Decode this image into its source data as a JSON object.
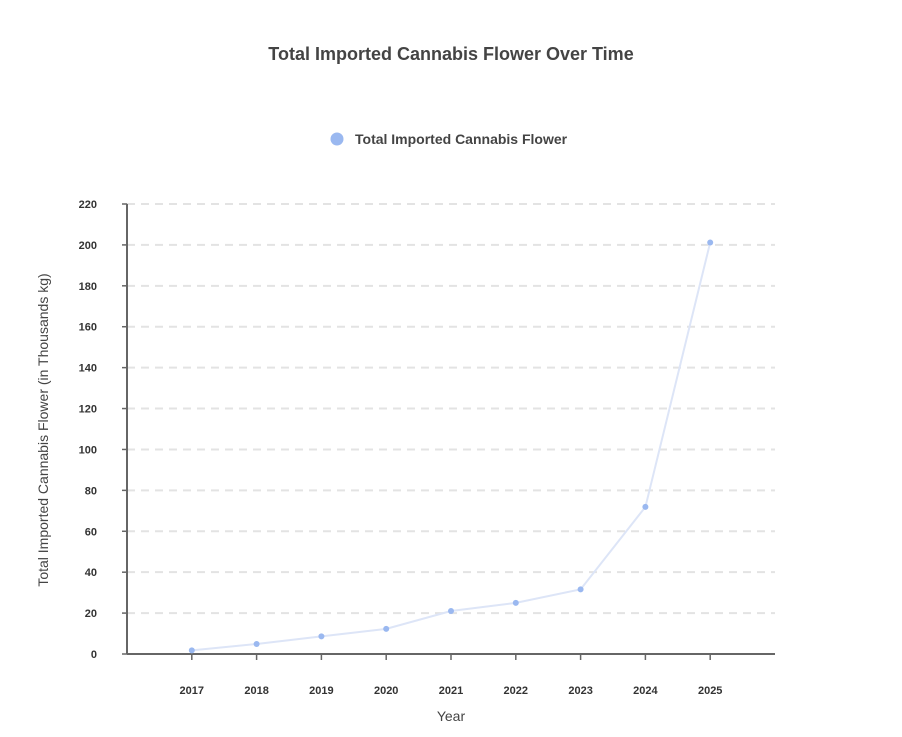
{
  "chart_data": {
    "type": "line",
    "title": "Total Imported Cannabis Flower Over Time",
    "xlabel": "Year",
    "ylabel": "Total Imported Cannabis Flower (in Thousands kg)",
    "legend": {
      "entries": [
        "Total Imported Cannabis Flower"
      ],
      "placement": "top-center"
    },
    "categories": [
      "2017",
      "2018",
      "2019",
      "2020",
      "2021",
      "2022",
      "2023",
      "2024",
      "2025"
    ],
    "series": [
      {
        "name": "Total Imported Cannabis Flower",
        "color": "#9ab8f0",
        "line_color": "#dde5f7",
        "values": [
          1.8,
          4.9,
          8.6,
          12.3,
          21.0,
          25.0,
          31.6,
          71.9,
          201.2
        ]
      }
    ],
    "ylim": [
      0,
      220
    ],
    "yticks": [
      0,
      20,
      40,
      60,
      80,
      100,
      120,
      140,
      160,
      180,
      200,
      220
    ],
    "grid": true
  }
}
